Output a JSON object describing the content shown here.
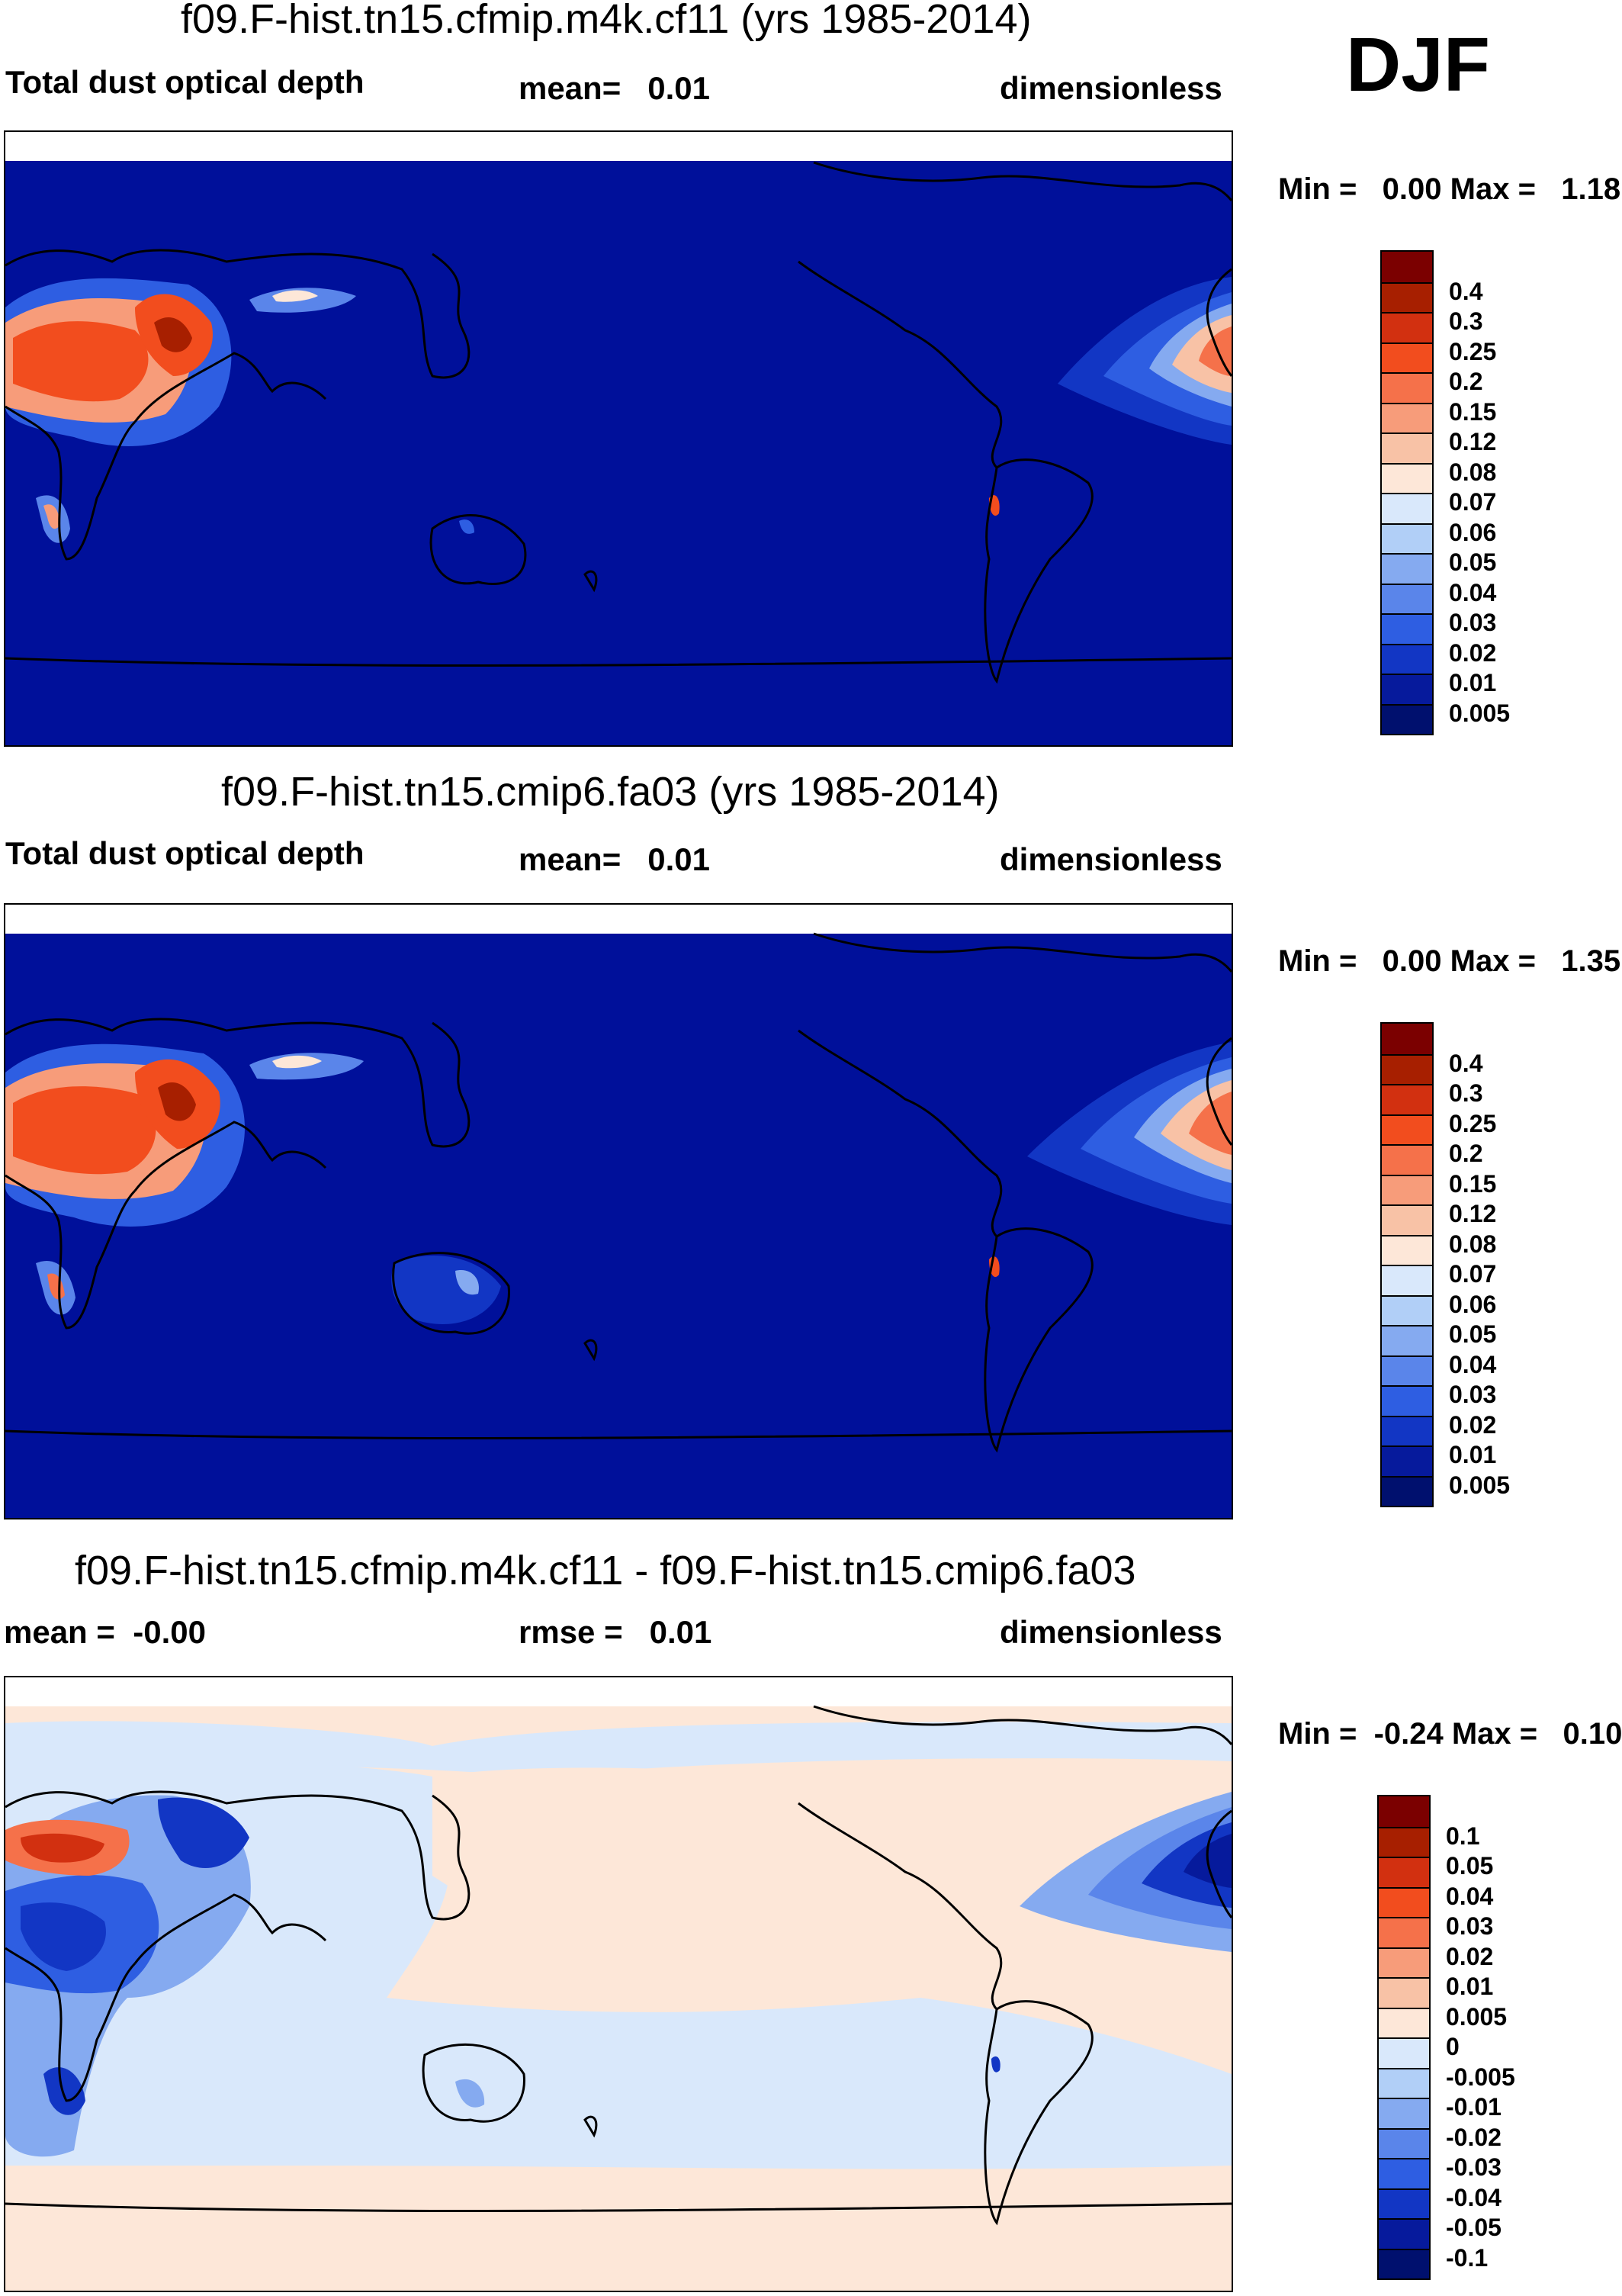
{
  "season": "DJF",
  "panels": [
    {
      "title": "f09.F-hist.tn15.cfmip.m4k.cf11 (yrs 1985-2014)",
      "left_label": "Total dust optical depth",
      "center_label": "mean=   0.01",
      "right_label": "dimensionless",
      "minmax": "Min =   0.00 Max =   1.18",
      "ocean_color": "#00109a",
      "colorbar": {
        "levels": [
          "0.4",
          "0.3",
          "0.25",
          "0.2",
          "0.15",
          "0.12",
          "0.08",
          "0.07",
          "0.06",
          "0.05",
          "0.04",
          "0.03",
          "0.02",
          "0.01",
          "0.005"
        ],
        "colors": [
          "#7b0000",
          "#a71f00",
          "#d23010",
          "#f24d1e",
          "#f5714a",
          "#f79c7a",
          "#f8c2a6",
          "#fde7d8",
          "#d9e8fb",
          "#b1cff7",
          "#85aaf0",
          "#5a85ea",
          "#2e5ee2",
          "#1236c4",
          "#061a9c",
          "#00106e"
        ]
      }
    },
    {
      "title": "f09.F-hist.tn15.cmip6.fa03 (yrs 1985-2014)",
      "left_label": "Total dust optical depth",
      "center_label": "mean=   0.01",
      "right_label": "dimensionless",
      "minmax": "Min =   0.00 Max =   1.35",
      "ocean_color": "#00109a",
      "colorbar": {
        "levels": [
          "0.4",
          "0.3",
          "0.25",
          "0.2",
          "0.15",
          "0.12",
          "0.08",
          "0.07",
          "0.06",
          "0.05",
          "0.04",
          "0.03",
          "0.02",
          "0.01",
          "0.005"
        ],
        "colors": [
          "#7b0000",
          "#a71f00",
          "#d23010",
          "#f24d1e",
          "#f5714a",
          "#f79c7a",
          "#f8c2a6",
          "#fde7d8",
          "#d9e8fb",
          "#b1cff7",
          "#85aaf0",
          "#5a85ea",
          "#2e5ee2",
          "#1236c4",
          "#061a9c",
          "#00106e"
        ]
      }
    },
    {
      "title": "f09.F-hist.tn15.cfmip.m4k.cf11 - f09.F-hist.tn15.cmip6.fa03",
      "left_label": "mean =  -0.00",
      "center_label": "rmse =   0.01",
      "right_label": "dimensionless",
      "minmax": "Min =  -0.24 Max =   0.10",
      "ocean_color": "#fde7d8",
      "colorbar": {
        "levels": [
          "0.1",
          "0.05",
          "0.04",
          "0.03",
          "0.02",
          "0.01",
          "0.005",
          "0",
          "-0.005",
          "-0.01",
          "-0.02",
          "-0.03",
          "-0.04",
          "-0.05",
          "-0.1"
        ],
        "colors": [
          "#7b0000",
          "#a71f00",
          "#d23010",
          "#f24d1e",
          "#f5714a",
          "#f79c7a",
          "#f8c2a6",
          "#fde7d8",
          "#d9e8fb",
          "#b1cff7",
          "#85aaf0",
          "#5a85ea",
          "#2e5ee2",
          "#1236c4",
          "#061a9c",
          "#00106e"
        ]
      }
    }
  ]
}
